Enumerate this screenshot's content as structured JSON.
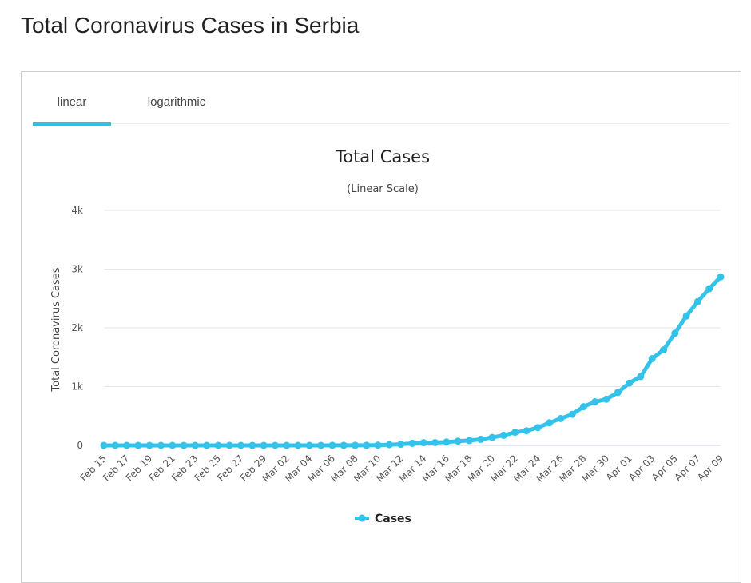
{
  "page": {
    "title": "Total Coronavirus Cases in Serbia"
  },
  "tabs": [
    {
      "label": "linear",
      "active": true
    },
    {
      "label": "logarithmic",
      "active": false
    }
  ],
  "colors": {
    "series": "#33c3ea",
    "tab_active": "#33bfe3",
    "grid": "#e6e6e6",
    "axis_text": "#555555"
  },
  "chart_data": {
    "type": "line",
    "title": "Total Cases",
    "subtitle": "(Linear Scale)",
    "ylabel": "Total Coronavirus Cases",
    "xlabel": "",
    "ylim": [
      0,
      4000
    ],
    "yticks": [
      0,
      1000,
      2000,
      3000,
      4000
    ],
    "ytick_labels": [
      "0",
      "1k",
      "2k",
      "3k",
      "4k"
    ],
    "grid": true,
    "legend": "bottom-center",
    "x": [
      "Feb 15",
      "Feb 16",
      "Feb 17",
      "Feb 18",
      "Feb 19",
      "Feb 20",
      "Feb 21",
      "Feb 22",
      "Feb 23",
      "Feb 24",
      "Feb 25",
      "Feb 26",
      "Feb 27",
      "Feb 28",
      "Feb 29",
      "Mar 01",
      "Mar 02",
      "Mar 03",
      "Mar 04",
      "Mar 05",
      "Mar 06",
      "Mar 07",
      "Mar 08",
      "Mar 09",
      "Mar 10",
      "Mar 11",
      "Mar 12",
      "Mar 13",
      "Mar 14",
      "Mar 15",
      "Mar 16",
      "Mar 17",
      "Mar 18",
      "Mar 19",
      "Mar 20",
      "Mar 21",
      "Mar 22",
      "Mar 23",
      "Mar 24",
      "Mar 25",
      "Mar 26",
      "Mar 27",
      "Mar 28",
      "Mar 29",
      "Mar 30",
      "Mar 31",
      "Apr 01",
      "Apr 02",
      "Apr 03",
      "Apr 04",
      "Apr 05",
      "Apr 06",
      "Apr 07",
      "Apr 08",
      "Apr 09"
    ],
    "xtick_labels": [
      "Feb 15",
      "Feb 17",
      "Feb 19",
      "Feb 21",
      "Feb 23",
      "Feb 25",
      "Feb 27",
      "Feb 29",
      "Mar 02",
      "Mar 04",
      "Mar 06",
      "Mar 08",
      "Mar 10",
      "Mar 12",
      "Mar 14",
      "Mar 16",
      "Mar 18",
      "Mar 20",
      "Mar 22",
      "Mar 24",
      "Mar 26",
      "Mar 28",
      "Mar 30",
      "Apr 01",
      "Apr 03",
      "Apr 05",
      "Apr 07",
      "Apr 09"
    ],
    "series": [
      {
        "name": "Cases",
        "values": [
          0,
          0,
          0,
          0,
          0,
          0,
          0,
          0,
          0,
          0,
          0,
          0,
          0,
          0,
          0,
          0,
          0,
          0,
          0,
          0,
          1,
          1,
          1,
          1,
          5,
          12,
          19,
          35,
          46,
          48,
          57,
          72,
          83,
          103,
          135,
          171,
          222,
          249,
          303,
          384,
          457,
          528,
          659,
          741,
          785,
          900,
          1060,
          1171,
          1476,
          1624,
          1908,
          2200,
          2447,
          2666,
          2867
        ]
      }
    ]
  }
}
